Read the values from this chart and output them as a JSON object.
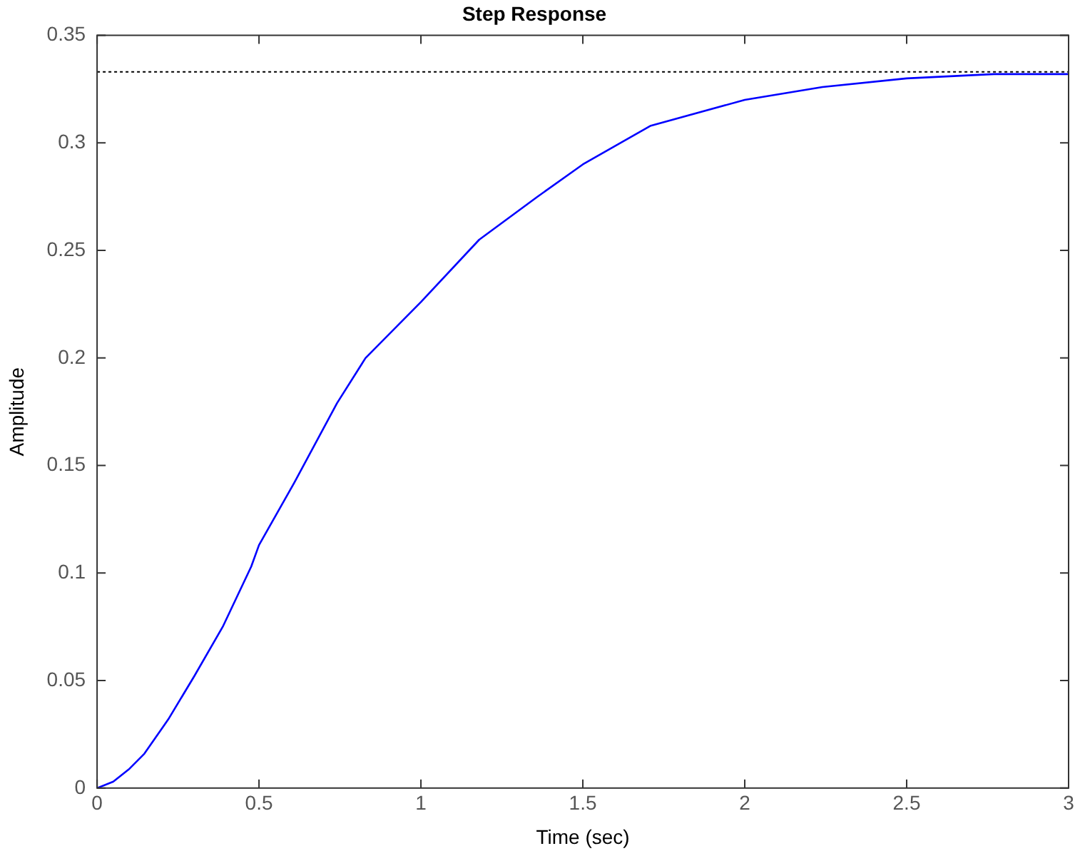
{
  "chart_data": {
    "type": "line",
    "title": "Step Response",
    "xlabel": "Time (sec)",
    "ylabel": "Amplitude",
    "x": [
      0,
      0.05,
      0.1,
      0.146,
      0.22,
      0.3,
      0.388,
      0.476,
      0.5,
      0.609,
      0.741,
      0.829,
      1.0,
      1.18,
      1.36,
      1.5,
      1.71,
      2.0,
      2.24,
      2.5,
      2.77,
      3.0
    ],
    "series": [
      {
        "color": "#0000ff",
        "values": [
          0,
          0.003,
          0.009,
          0.016,
          0.032,
          0.052,
          0.075,
          0.103,
          0.113,
          0.142,
          0.179,
          0.2,
          0.226,
          0.255,
          0.275,
          0.29,
          0.308,
          0.32,
          0.326,
          0.33,
          0.332,
          0.332
        ]
      }
    ],
    "xlim": [
      0,
      3
    ],
    "xticks": [
      0,
      0.5,
      1,
      1.5,
      2,
      2.5,
      3
    ],
    "ylim": [
      0,
      0.35
    ],
    "yticks": [
      0,
      0.05,
      0.1,
      0.15,
      0.2,
      0.25,
      0.3,
      0.35
    ],
    "ref_lines": [
      {
        "axis": "y",
        "value": 0.333,
        "color": "#000000",
        "line_style": "dotted"
      }
    ],
    "grid": false,
    "legend": false,
    "marker": "none",
    "line_style": "solid"
  }
}
